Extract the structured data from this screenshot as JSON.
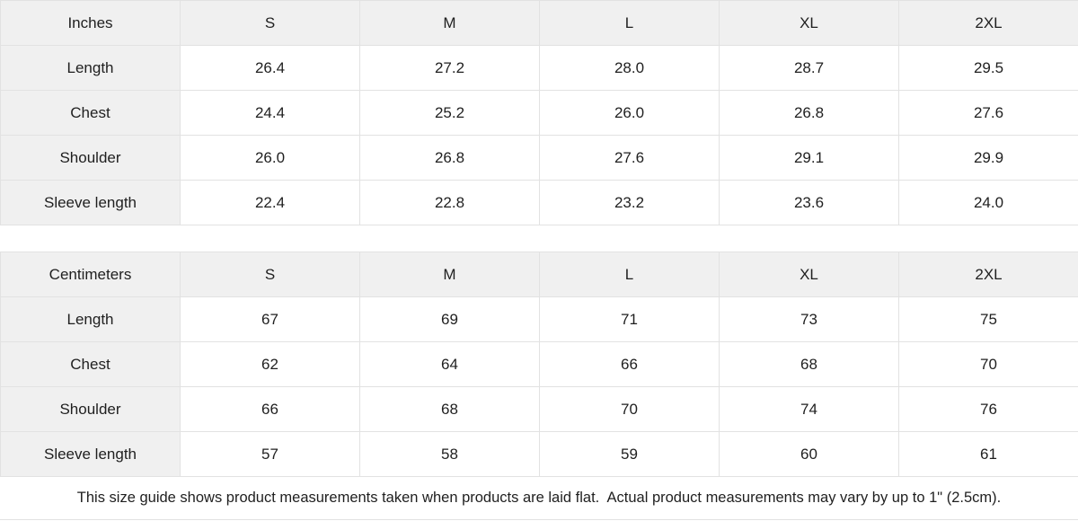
{
  "colors": {
    "header_bg": "#f0f0f0",
    "cell_bg": "#ffffff",
    "border": "#e2e2e2",
    "text": "#1f1f1f"
  },
  "tables": [
    {
      "unit": "Inches",
      "header": [
        "Inches",
        "S",
        "M",
        "L",
        "XL",
        "2XL"
      ],
      "rows": [
        {
          "label": "Length",
          "values": [
            "26.4",
            "27.2",
            "28.0",
            "28.7",
            "29.5"
          ]
        },
        {
          "label": "Chest",
          "values": [
            "24.4",
            "25.2",
            "26.0",
            "26.8",
            "27.6"
          ]
        },
        {
          "label": "Shoulder",
          "values": [
            "26.0",
            "26.8",
            "27.6",
            "29.1",
            "29.9"
          ]
        },
        {
          "label": "Sleeve length",
          "values": [
            "22.4",
            "22.8",
            "23.2",
            "23.6",
            "24.0"
          ]
        }
      ]
    },
    {
      "unit": "Centimeters",
      "header": [
        "Centimeters",
        "S",
        "M",
        "L",
        "XL",
        "2XL"
      ],
      "rows": [
        {
          "label": "Length",
          "values": [
            "67",
            "69",
            "71",
            "73",
            "75"
          ]
        },
        {
          "label": "Chest",
          "values": [
            "62",
            "64",
            "66",
            "68",
            "70"
          ]
        },
        {
          "label": "Shoulder",
          "values": [
            "66",
            "68",
            "70",
            "74",
            "76"
          ]
        },
        {
          "label": "Sleeve length",
          "values": [
            "57",
            "58",
            "59",
            "60",
            "61"
          ]
        }
      ]
    }
  ],
  "footer": {
    "note": "This size guide shows product measurements taken when products are laid flat.  Actual product measurements may vary by up to 1\" (2.5cm)."
  }
}
